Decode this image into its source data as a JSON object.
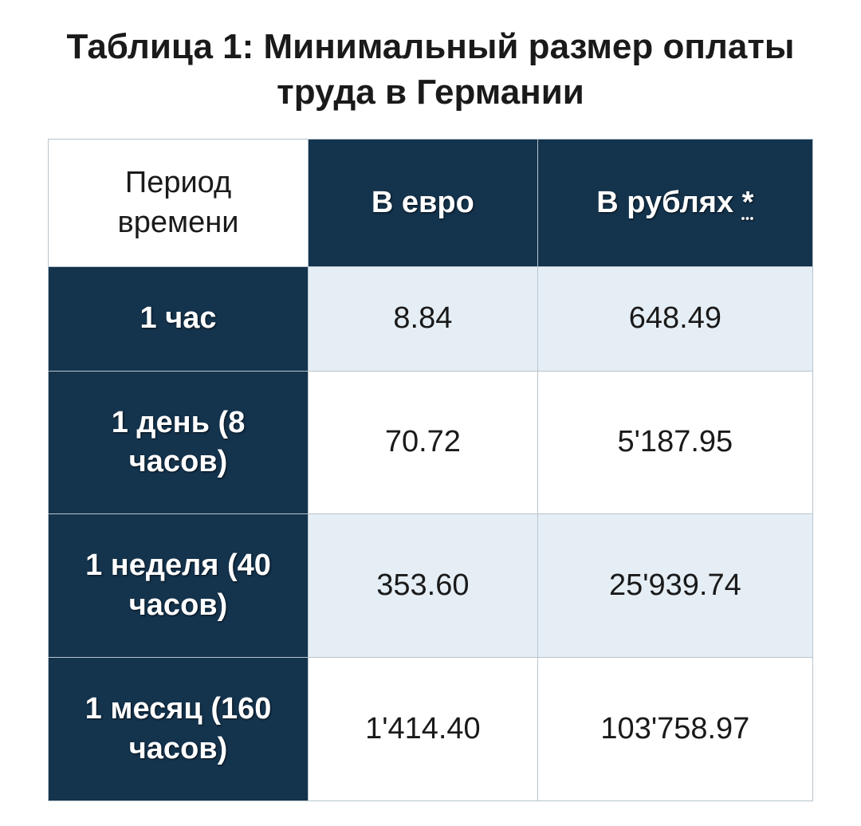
{
  "title": "Таблица 1: Минимальный размер оплаты труда в Германии",
  "table": {
    "columns": {
      "period": "Период времени",
      "euro": "В евро",
      "rubles_prefix": "В рублях ",
      "rubles_footnote": "*"
    },
    "column_widths": {
      "period": "34%",
      "euro": "30%",
      "rubles": "36%"
    },
    "rows": [
      {
        "period": "1 час",
        "euro": "8.84",
        "rubles": "648.49",
        "shade": "light"
      },
      {
        "period": "1 день (8 часов)",
        "euro": "70.72",
        "rubles": "5'187.95",
        "shade": "white"
      },
      {
        "period": "1 неделя (40 часов)",
        "euro": "353.60",
        "rubles": "25'939.74",
        "shade": "light"
      },
      {
        "period": "1 месяц (160 часов)",
        "euro": "1'414.40",
        "rubles": "103'758.97",
        "shade": "white"
      }
    ],
    "colors": {
      "dark_bg": "#14334d",
      "light_bg": "#e6eef5",
      "white_bg": "#ffffff",
      "border": "#b8c4cc",
      "text_dark": "#1a1a1a",
      "text_light": "#ffffff"
    },
    "typography": {
      "title_fontsize": 44,
      "cell_fontsize": 38,
      "header_weight": 700,
      "body_weight": 400
    }
  }
}
